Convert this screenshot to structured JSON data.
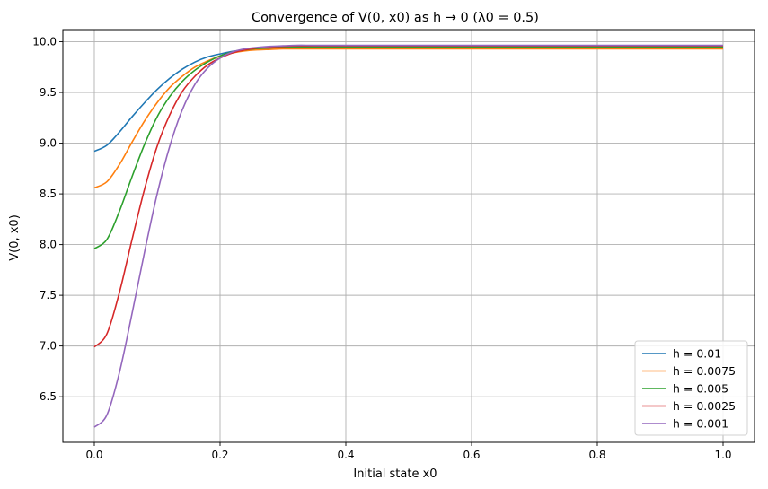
{
  "chart_data": {
    "type": "line",
    "title": "Convergence of V(0, x0) as h → 0 (λ0 = 0.5)",
    "xlabel": "Initial state x0",
    "ylabel": "V(0, x0)",
    "xlim": [
      -0.05,
      1.05
    ],
    "ylim": [
      6.05,
      10.12
    ],
    "xticks": [
      0.0,
      0.2,
      0.4,
      0.6,
      0.8,
      1.0
    ],
    "xtick_labels": [
      "0.0",
      "0.2",
      "0.4",
      "0.6",
      "0.8",
      "1.0"
    ],
    "yticks": [
      6.5,
      7.0,
      7.5,
      8.0,
      8.5,
      9.0,
      9.5,
      10.0
    ],
    "ytick_labels": [
      "6.5",
      "7.0",
      "7.5",
      "8.0",
      "8.5",
      "9.0",
      "9.5",
      "10.0"
    ],
    "grid": true,
    "legend_position": "lower-right",
    "x": [
      0.0,
      0.02,
      0.04,
      0.06,
      0.08,
      0.1,
      0.12,
      0.14,
      0.16,
      0.18,
      0.2,
      0.22,
      0.24,
      0.26,
      0.28,
      0.3,
      0.32,
      0.35,
      0.4,
      0.5,
      0.6,
      0.7,
      0.8,
      0.9,
      1.0
    ],
    "series": [
      {
        "name": "h = 0.01",
        "color": "#1f77b4",
        "values": [
          8.92,
          8.98,
          9.11,
          9.26,
          9.4,
          9.53,
          9.64,
          9.73,
          9.8,
          9.85,
          9.88,
          9.905,
          9.92,
          9.93,
          9.935,
          9.94,
          9.94,
          9.94,
          9.94,
          9.94,
          9.94,
          9.94,
          9.94,
          9.94,
          9.94
        ]
      },
      {
        "name": "h = 0.0075",
        "color": "#ff7f0e",
        "values": [
          8.56,
          8.62,
          8.79,
          9.01,
          9.22,
          9.4,
          9.55,
          9.66,
          9.75,
          9.81,
          9.86,
          9.89,
          9.91,
          9.92,
          9.925,
          9.93,
          9.93,
          9.93,
          9.93,
          9.93,
          9.93,
          9.93,
          9.93,
          9.93,
          9.93
        ]
      },
      {
        "name": "h = 0.005",
        "color": "#2ca02c",
        "values": [
          7.96,
          8.05,
          8.33,
          8.67,
          8.99,
          9.26,
          9.46,
          9.61,
          9.72,
          9.8,
          9.86,
          9.9,
          9.92,
          9.935,
          9.94,
          9.945,
          9.95,
          9.95,
          9.95,
          9.95,
          9.95,
          9.95,
          9.95,
          9.95,
          9.95
        ]
      },
      {
        "name": "h = 0.0025",
        "color": "#d62728",
        "values": [
          6.99,
          7.12,
          7.53,
          8.05,
          8.55,
          8.97,
          9.28,
          9.51,
          9.66,
          9.77,
          9.84,
          9.89,
          9.92,
          9.94,
          9.95,
          9.955,
          9.96,
          9.96,
          9.96,
          9.96,
          9.96,
          9.96,
          9.96,
          9.96,
          9.96
        ]
      },
      {
        "name": "h = 0.001",
        "color": "#9467bd",
        "values": [
          6.2,
          6.32,
          6.74,
          7.32,
          7.93,
          8.5,
          8.97,
          9.33,
          9.58,
          9.74,
          9.84,
          9.9,
          9.93,
          9.945,
          9.955,
          9.96,
          9.965,
          9.965,
          9.965,
          9.965,
          9.965,
          9.965,
          9.965,
          9.965,
          9.965
        ]
      }
    ]
  }
}
